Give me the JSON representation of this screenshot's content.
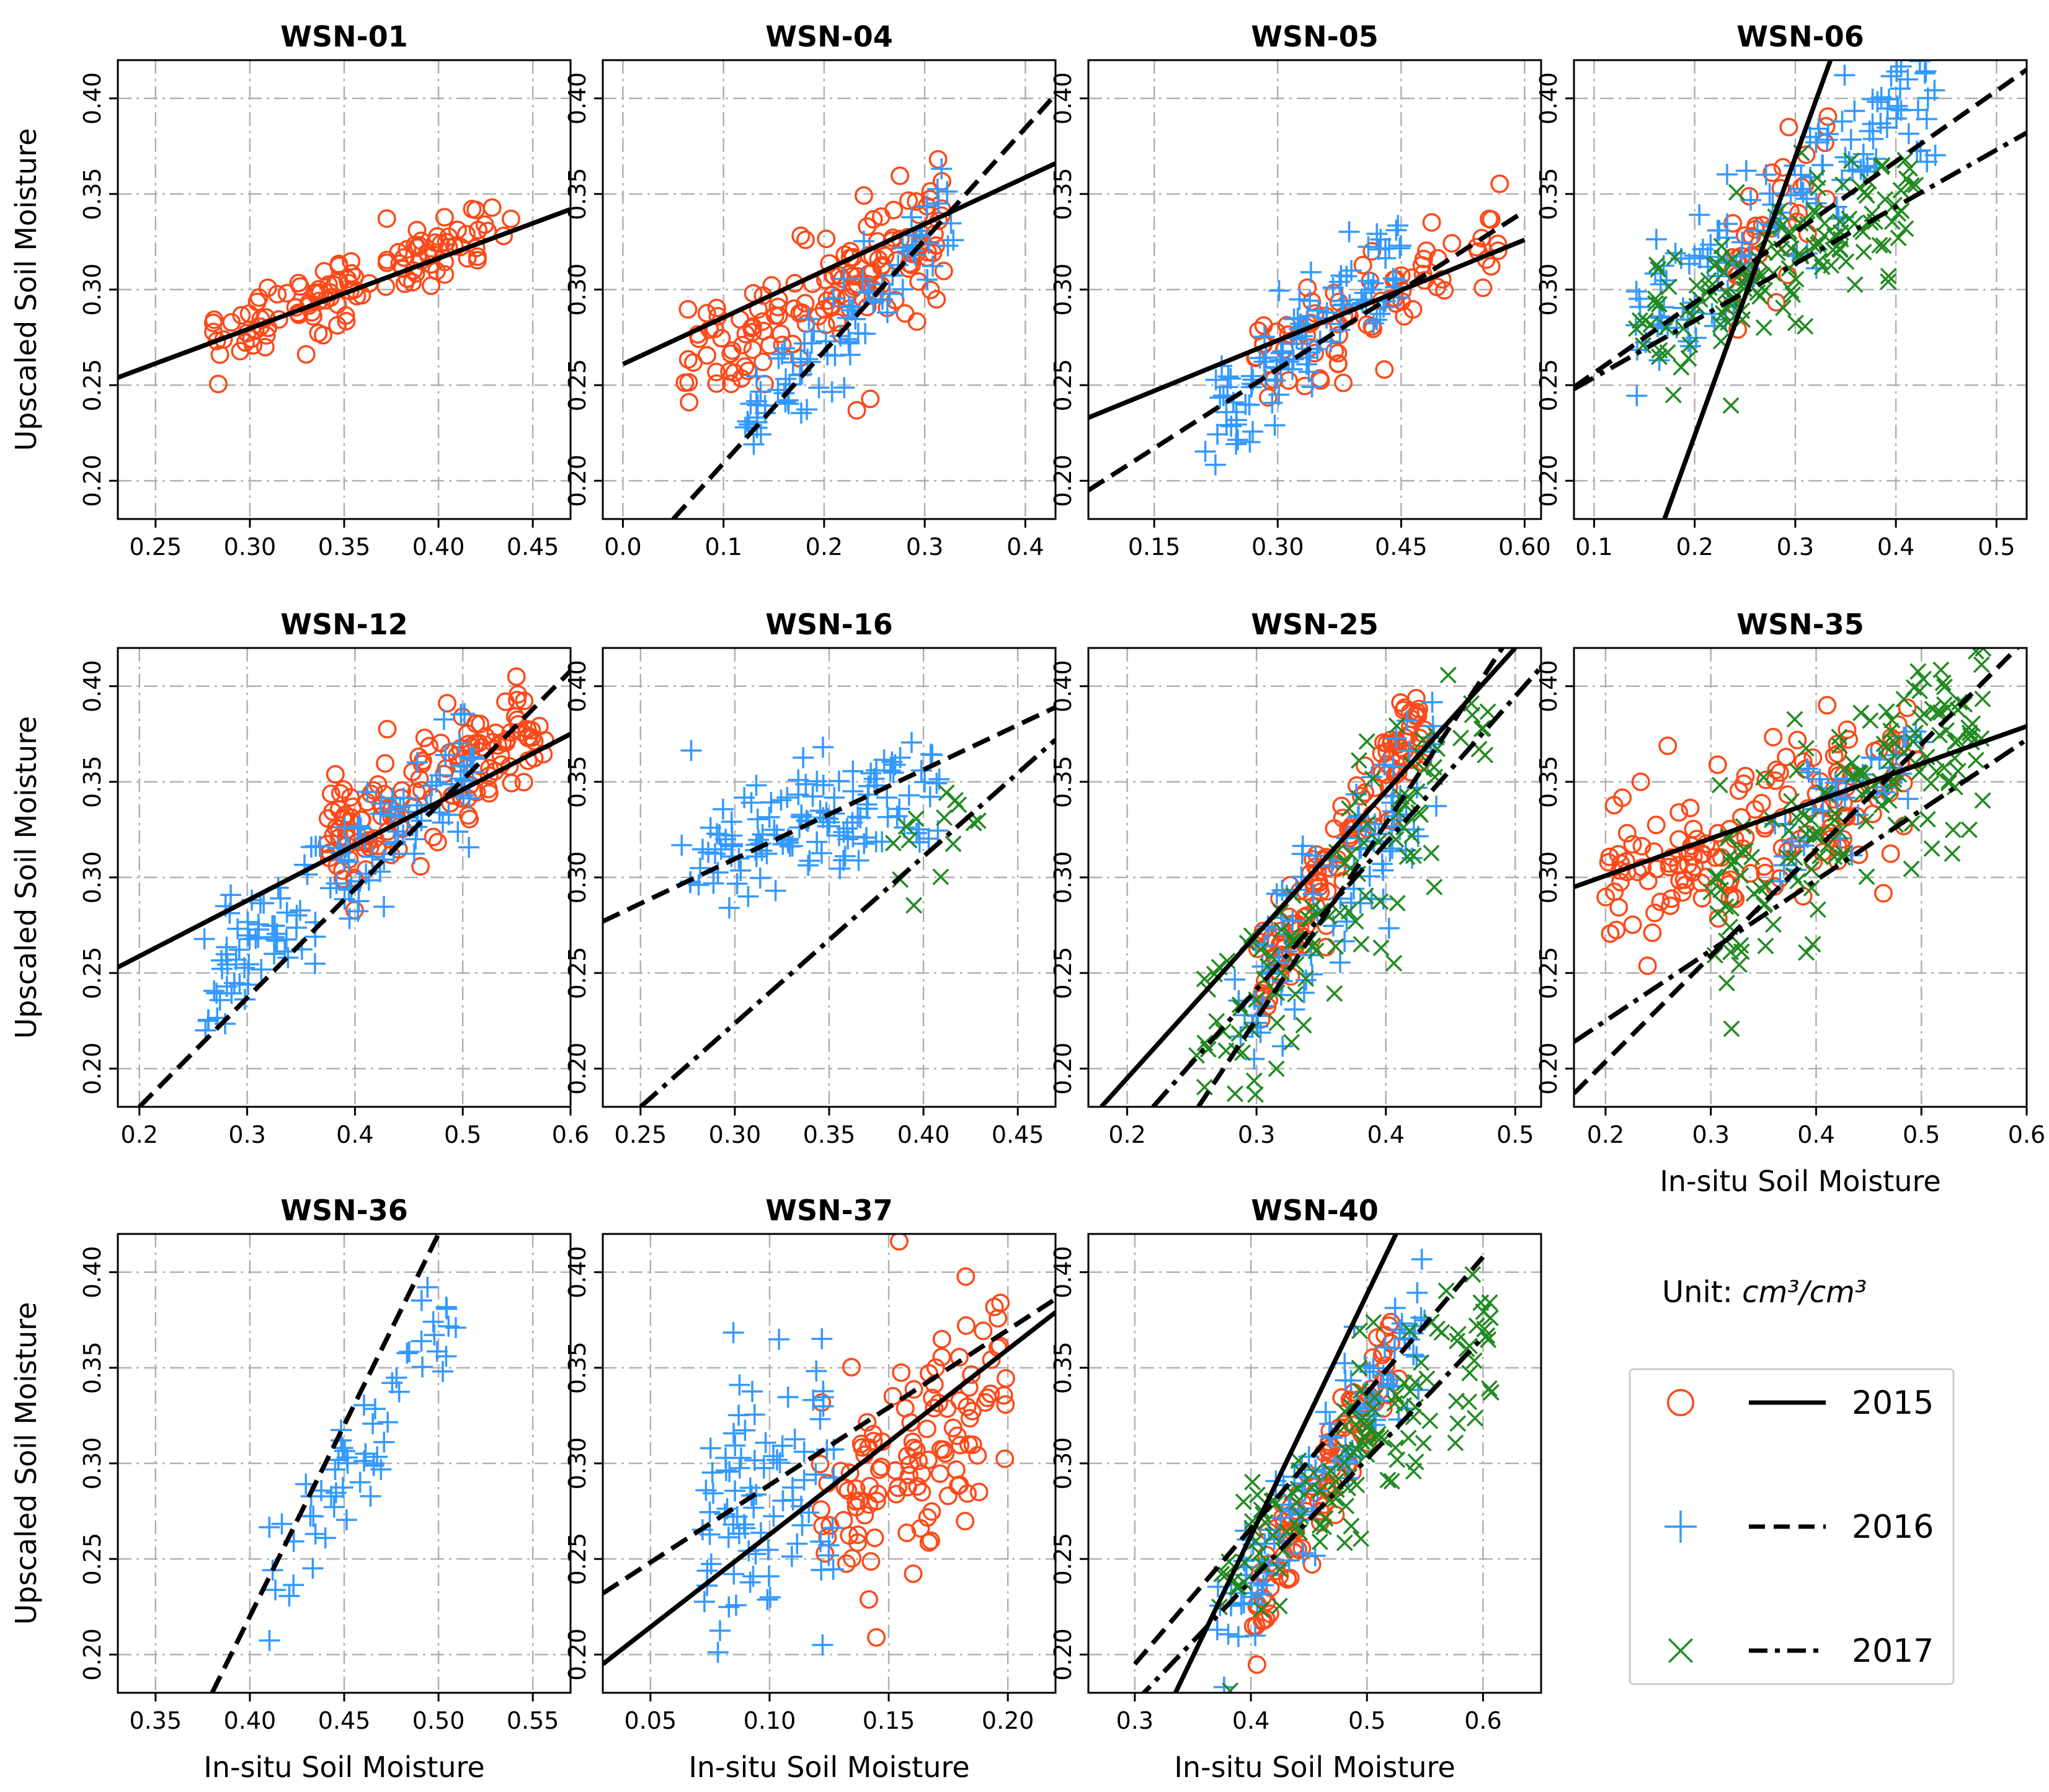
{
  "colors": {
    "y2015": "#fc4a1a",
    "y2016": "#3399ff",
    "y2017": "#228b22",
    "line": "#000000",
    "grid": "#b0b0b0"
  },
  "figure": {
    "xlabel": "In-situ Soil Moisture",
    "ylabel": "Upscaled Soil Moisture",
    "unit_prefix": "Unit: ",
    "unit_value": "cm³/cm³"
  },
  "legend": {
    "entries": [
      {
        "year": "2015",
        "marker": "circle",
        "line_style": "solid"
      },
      {
        "year": "2016",
        "marker": "plus",
        "line_style": "dashed"
      },
      {
        "year": "2017",
        "marker": "x",
        "line_style": "dashdot"
      }
    ]
  },
  "chart_data": [
    {
      "type": "scatter",
      "title": "WSN-01",
      "xlim": [
        0.23,
        0.47
      ],
      "ylim": [
        0.18,
        0.42
      ],
      "xticks": [
        "0.25",
        "0.30",
        "0.35",
        "0.40",
        "0.45"
      ],
      "yticks": [
        "0.20",
        "0.25",
        "0.30",
        "0.35",
        "0.40"
      ],
      "series": [
        {
          "year": "2015",
          "cloud": {
            "x_range": [
              0.28,
              0.44
            ],
            "slope": 0.39,
            "intercept": 0.165,
            "sd": 0.009,
            "n": 120
          },
          "fit": [
            [
              0.23,
              0.254
            ],
            [
              0.47,
              0.342
            ]
          ]
        }
      ]
    },
    {
      "type": "scatter",
      "title": "WSN-04",
      "xlim": [
        -0.02,
        0.43
      ],
      "ylim": [
        0.18,
        0.42
      ],
      "xticks": [
        "0.0",
        "0.1",
        "0.2",
        "0.3",
        "0.4"
      ],
      "yticks": [
        "0.20",
        "0.25",
        "0.30",
        "0.35",
        "0.40"
      ],
      "series": [
        {
          "year": "2015",
          "cloud": {
            "x_range": [
              0.06,
              0.32
            ],
            "slope": 0.25,
            "intercept": 0.25,
            "sd": 0.017,
            "n": 150
          },
          "fit": [
            [
              0.0,
              0.261
            ],
            [
              0.43,
              0.366
            ]
          ]
        },
        {
          "year": "2016",
          "cloud": {
            "x_range": [
              0.12,
              0.33
            ],
            "slope": 0.55,
            "intercept": 0.16,
            "sd": 0.012,
            "n": 90
          },
          "fit": [
            [
              0.05,
              0.18
            ],
            [
              0.43,
              0.402
            ]
          ]
        }
      ]
    },
    {
      "type": "scatter",
      "title": "WSN-05",
      "xlim": [
        0.07,
        0.62
      ],
      "ylim": [
        0.18,
        0.42
      ],
      "xticks": [
        "0.15",
        "0.30",
        "0.45",
        "0.60"
      ],
      "yticks": [
        "0.20",
        "0.25",
        "0.30",
        "0.35",
        "0.40"
      ],
      "series": [
        {
          "year": "2015",
          "cloud": {
            "x_range": [
              0.27,
              0.57
            ],
            "slope": 0.2,
            "intercept": 0.21,
            "sd": 0.015,
            "n": 80
          },
          "fit": [
            [
              0.07,
              0.233
            ],
            [
              0.6,
              0.326
            ]
          ]
        },
        {
          "year": "2016",
          "cloud": {
            "x_range": [
              0.21,
              0.45
            ],
            "slope": 0.4,
            "intercept": 0.14,
            "sd": 0.014,
            "n": 110
          },
          "fit": [
            [
              0.07,
              0.195
            ],
            [
              0.6,
              0.341
            ]
          ]
        }
      ]
    },
    {
      "type": "scatter",
      "title": "WSN-06",
      "xlim": [
        0.08,
        0.53
      ],
      "ylim": [
        0.18,
        0.42
      ],
      "xticks": [
        "0.1",
        "0.2",
        "0.3",
        "0.4",
        "0.5"
      ],
      "yticks": [
        "0.20",
        "0.25",
        "0.30",
        "0.35",
        "0.40"
      ],
      "series": [
        {
          "year": "2015",
          "cloud": {
            "x_range": [
              0.23,
              0.34
            ],
            "slope": 0.6,
            "intercept": 0.17,
            "sd": 0.018,
            "n": 40
          },
          "fit": [
            [
              0.17,
              0.18
            ],
            [
              0.335,
              0.42
            ]
          ]
        },
        {
          "year": "2016",
          "cloud": {
            "x_range": [
              0.14,
              0.44
            ],
            "slope": 0.45,
            "intercept": 0.215,
            "sd": 0.02,
            "n": 140
          },
          "fit": [
            [
              0.08,
              0.249
            ],
            [
              0.53,
              0.415
            ]
          ]
        },
        {
          "year": "2017",
          "cloud": {
            "x_range": [
              0.14,
              0.42
            ],
            "slope": 0.28,
            "intercept": 0.235,
            "sd": 0.016,
            "n": 140
          },
          "fit": [
            [
              0.08,
              0.248
            ],
            [
              0.53,
              0.382
            ]
          ]
        }
      ]
    },
    {
      "type": "scatter",
      "title": "WSN-12",
      "xlim": [
        0.18,
        0.6
      ],
      "ylim": [
        0.18,
        0.42
      ],
      "xticks": [
        "0.2",
        "0.3",
        "0.4",
        "0.5",
        "0.6"
      ],
      "yticks": [
        "0.20",
        "0.25",
        "0.30",
        "0.35",
        "0.40"
      ],
      "series": [
        {
          "year": "2015",
          "cloud": {
            "x_range": [
              0.37,
              0.58
            ],
            "slope": 0.3,
            "intercept": 0.205,
            "sd": 0.014,
            "n": 150
          },
          "fit": [
            [
              0.18,
              0.253
            ],
            [
              0.6,
              0.375
            ]
          ]
        },
        {
          "year": "2016",
          "cloud": {
            "x_range": [
              0.26,
              0.52
            ],
            "slope": 0.48,
            "intercept": 0.115,
            "sd": 0.016,
            "n": 140
          },
          "fit": [
            [
              0.2,
              0.18
            ],
            [
              0.6,
              0.408
            ]
          ]
        }
      ]
    },
    {
      "type": "scatter",
      "title": "WSN-16",
      "xlim": [
        0.23,
        0.47
      ],
      "ylim": [
        0.18,
        0.42
      ],
      "xticks": [
        "0.25",
        "0.30",
        "0.35",
        "0.40",
        "0.45"
      ],
      "yticks": [
        "0.20",
        "0.25",
        "0.30",
        "0.35",
        "0.40"
      ],
      "series": [
        {
          "year": "2016",
          "cloud": {
            "x_range": [
              0.27,
              0.41
            ],
            "slope": 0.3,
            "intercept": 0.225,
            "sd": 0.017,
            "n": 130
          },
          "fit": [
            [
              0.23,
              0.277
            ],
            [
              0.47,
              0.389
            ]
          ]
        },
        {
          "year": "2017",
          "cloud": {
            "x_range": [
              0.38,
              0.43
            ],
            "slope": 0.6,
            "intercept": 0.08,
            "sd": 0.012,
            "n": 14
          },
          "fit": [
            [
              0.25,
              0.18
            ],
            [
              0.47,
              0.372
            ]
          ]
        }
      ]
    },
    {
      "type": "scatter",
      "title": "WSN-25",
      "xlim": [
        0.17,
        0.52
      ],
      "ylim": [
        0.18,
        0.42
      ],
      "xticks": [
        "0.2",
        "0.3",
        "0.4",
        "0.5"
      ],
      "yticks": [
        "0.20",
        "0.25",
        "0.30",
        "0.35",
        "0.40"
      ],
      "series": [
        {
          "year": "2015",
          "cloud": {
            "x_range": [
              0.3,
              0.43
            ],
            "slope": 1.1,
            "intercept": -0.085,
            "sd": 0.013,
            "n": 130
          },
          "fit": [
            [
              0.18,
              0.18
            ],
            [
              0.5,
              0.42
            ]
          ]
        },
        {
          "year": "2016",
          "cloud": {
            "x_range": [
              0.28,
              0.44
            ],
            "slope": 0.9,
            "intercept": -0.03,
            "sd": 0.022,
            "n": 100
          },
          "fit": [
            [
              0.255,
              0.18
            ],
            [
              0.49,
              0.42
            ]
          ]
        },
        {
          "year": "2017",
          "cloud": {
            "x_range": [
              0.25,
              0.48
            ],
            "slope": 0.75,
            "intercept": 0.02,
            "sd": 0.025,
            "n": 110
          },
          "fit": [
            [
              0.22,
              0.18
            ],
            [
              0.52,
              0.41
            ]
          ]
        }
      ]
    },
    {
      "type": "scatter",
      "title": "WSN-35",
      "xlim": [
        0.17,
        0.6
      ],
      "ylim": [
        0.18,
        0.42
      ],
      "xticks": [
        "0.2",
        "0.3",
        "0.4",
        "0.5",
        "0.6"
      ],
      "yticks": [
        "0.20",
        "0.25",
        "0.30",
        "0.35",
        "0.40"
      ],
      "series": [
        {
          "year": "2015",
          "cloud": {
            "x_range": [
              0.2,
              0.5
            ],
            "slope": 0.25,
            "intercept": 0.24,
            "sd": 0.02,
            "n": 160
          },
          "fit": [
            [
              0.17,
              0.295
            ],
            [
              0.6,
              0.379
            ]
          ]
        },
        {
          "year": "2016",
          "cloud": {
            "x_range": [
              0.36,
              0.5
            ],
            "slope": 0.4,
            "intercept": 0.17,
            "sd": 0.012,
            "n": 40
          },
          "fit": [
            [
              0.17,
              0.187
            ],
            [
              0.6,
              0.425
            ]
          ]
        },
        {
          "year": "2017",
          "cloud": {
            "x_range": [
              0.3,
              0.56
            ],
            "slope": 0.4,
            "intercept": 0.165,
            "sd": 0.025,
            "n": 150
          },
          "fit": [
            [
              0.17,
              0.214
            ],
            [
              0.6,
              0.372
            ]
          ]
        }
      ]
    },
    {
      "type": "scatter",
      "title": "WSN-36",
      "xlim": [
        0.33,
        0.57
      ],
      "ylim": [
        0.18,
        0.42
      ],
      "xticks": [
        "0.35",
        "0.40",
        "0.45",
        "0.50",
        "0.55"
      ],
      "yticks": [
        "0.20",
        "0.25",
        "0.30",
        "0.35",
        "0.40"
      ],
      "series": [
        {
          "year": "2016",
          "cloud": {
            "x_range": [
              0.41,
              0.51
            ],
            "slope": 1.5,
            "intercept": -0.38,
            "sd": 0.018,
            "n": 60
          },
          "fit": [
            [
              0.38,
              0.18
            ],
            [
              0.5,
              0.42
            ]
          ]
        }
      ]
    },
    {
      "type": "scatter",
      "title": "WSN-37",
      "xlim": [
        0.03,
        0.22
      ],
      "ylim": [
        0.18,
        0.42
      ],
      "xticks": [
        "0.05",
        "0.10",
        "0.15",
        "0.20"
      ],
      "yticks": [
        "0.20",
        "0.25",
        "0.30",
        "0.35",
        "0.40"
      ],
      "series": [
        {
          "year": "2015",
          "cloud": {
            "x_range": [
              0.12,
              0.2
            ],
            "slope": 0.8,
            "intercept": 0.18,
            "sd": 0.03,
            "n": 120
          },
          "fit": [
            [
              0.03,
              0.195
            ],
            [
              0.22,
              0.379
            ]
          ]
        },
        {
          "year": "2016",
          "cloud": {
            "x_range": [
              0.07,
              0.13
            ],
            "slope": 0.5,
            "intercept": 0.23,
            "sd": 0.035,
            "n": 90
          },
          "fit": [
            [
              0.03,
              0.232
            ],
            [
              0.22,
              0.386
            ]
          ]
        }
      ]
    },
    {
      "type": "scatter",
      "title": "WSN-40",
      "xlim": [
        0.26,
        0.65
      ],
      "ylim": [
        0.18,
        0.42
      ],
      "xticks": [
        "0.3",
        "0.4",
        "0.5",
        "0.6"
      ],
      "yticks": [
        "0.20",
        "0.25",
        "0.30",
        "0.35",
        "0.40"
      ],
      "series": [
        {
          "year": "2015",
          "cloud": {
            "x_range": [
              0.4,
              0.53
            ],
            "slope": 1.1,
            "intercept": -0.22,
            "sd": 0.015,
            "n": 110
          },
          "fit": [
            [
              0.335,
              0.18
            ],
            [
              0.525,
              0.42
            ]
          ]
        },
        {
          "year": "2016",
          "cloud": {
            "x_range": [
              0.37,
              0.55
            ],
            "slope": 0.9,
            "intercept": -0.12,
            "sd": 0.018,
            "n": 110
          },
          "fit": [
            [
              0.3,
              0.195
            ],
            [
              0.6,
              0.408
            ]
          ]
        },
        {
          "year": "2017",
          "cloud": {
            "x_range": [
              0.37,
              0.61
            ],
            "slope": 0.6,
            "intercept": 0.01,
            "sd": 0.022,
            "n": 130
          },
          "fit": [
            [
              0.3,
              0.175
            ],
            [
              0.6,
              0.366
            ]
          ]
        }
      ]
    }
  ]
}
